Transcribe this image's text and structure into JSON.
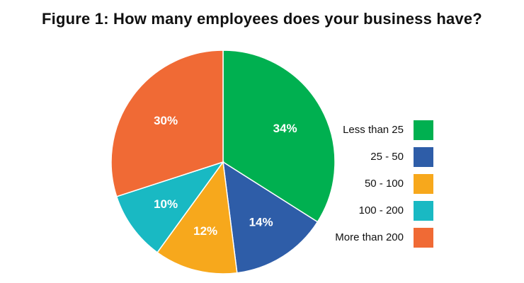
{
  "title": "Figure 1: How many employees does your business have?",
  "chart_data": {
    "type": "pie",
    "title": "Figure 1: How many employees does your business have?",
    "slices": [
      {
        "label": "Less than 25",
        "value": 34,
        "display": "34%",
        "color": "#00b050"
      },
      {
        "label": "25 - 50",
        "value": 14,
        "display": "14%",
        "color": "#2e5da8"
      },
      {
        "label": "50 - 100",
        "value": 12,
        "display": "12%",
        "color": "#f7a81c"
      },
      {
        "label": "100 - 200",
        "value": 10,
        "display": "10%",
        "color": "#19b9c3"
      },
      {
        "label": "More than 200",
        "value": 30,
        "display": "30%",
        "color": "#f06a35"
      }
    ],
    "start": "12 o'clock",
    "direction": "clockwise",
    "legend_position": "right"
  }
}
